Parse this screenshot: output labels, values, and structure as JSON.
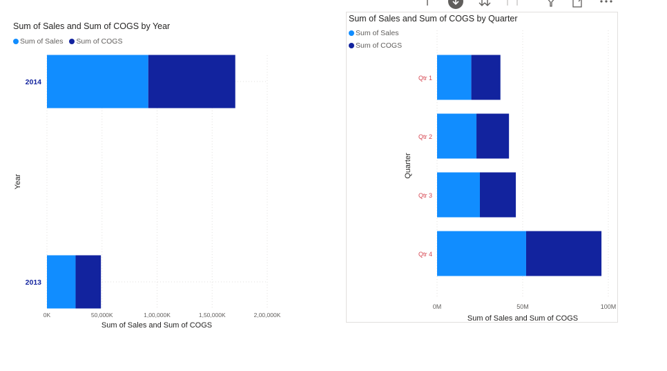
{
  "colors": {
    "sales": "#118dff",
    "cogs": "#12239e",
    "axis_text": "#605e5c",
    "grid": "#e1dfdd",
    "quarter_label": "#d64550",
    "year_label": "#12239e"
  },
  "toolbar": {
    "icons": [
      "pin-icon",
      "focus-mode-icon",
      "drill-down-icon",
      "expand-hierarchy-icon",
      "filter-icon",
      "expand-icon",
      "more-options-icon"
    ]
  },
  "chart_data": [
    {
      "type": "bar",
      "orientation": "horizontal",
      "stacked": true,
      "title": "Sum of Sales and Sum of COGS by Year",
      "legend": [
        "Sum of  Sales",
        "Sum of COGS"
      ],
      "legend_placement": "top-left",
      "categories": [
        "2014",
        "2013"
      ],
      "series": [
        {
          "name": "Sum of  Sales",
          "values": [
            92000000,
            26000000
          ]
        },
        {
          "name": "Sum of COGS",
          "values": [
            79000000,
            23000000
          ]
        }
      ],
      "xlabel": "Sum of Sales and Sum of COGS",
      "ylabel": "Year",
      "xticks": [
        "0K",
        "50,000K",
        "1,00,000K",
        "1,50,000K",
        "2,00,000K"
      ],
      "xtick_values": [
        0,
        50000000,
        100000000,
        150000000,
        200000000
      ],
      "xlim": [
        0,
        200000000
      ],
      "grid": true
    },
    {
      "type": "bar",
      "orientation": "horizontal",
      "stacked": true,
      "title": "Sum of Sales and Sum of COGS by Quarter",
      "legend": [
        "Sum of  Sales",
        "Sum of COGS"
      ],
      "legend_placement": "top-left",
      "categories": [
        "Qtr 1",
        "Qtr 2",
        "Qtr 3",
        "Qtr 4"
      ],
      "series": [
        {
          "name": "Sum of  Sales",
          "values": [
            20000000,
            23000000,
            25000000,
            52000000
          ]
        },
        {
          "name": "Sum of COGS",
          "values": [
            17000000,
            19000000,
            21000000,
            44000000
          ]
        }
      ],
      "xlabel": "Sum of Sales and Sum of COGS",
      "ylabel": "Quarter",
      "xticks": [
        "0M",
        "50M",
        "100M"
      ],
      "xtick_values": [
        0,
        50000000,
        100000000
      ],
      "xlim": [
        0,
        100000000
      ],
      "grid": true
    }
  ]
}
